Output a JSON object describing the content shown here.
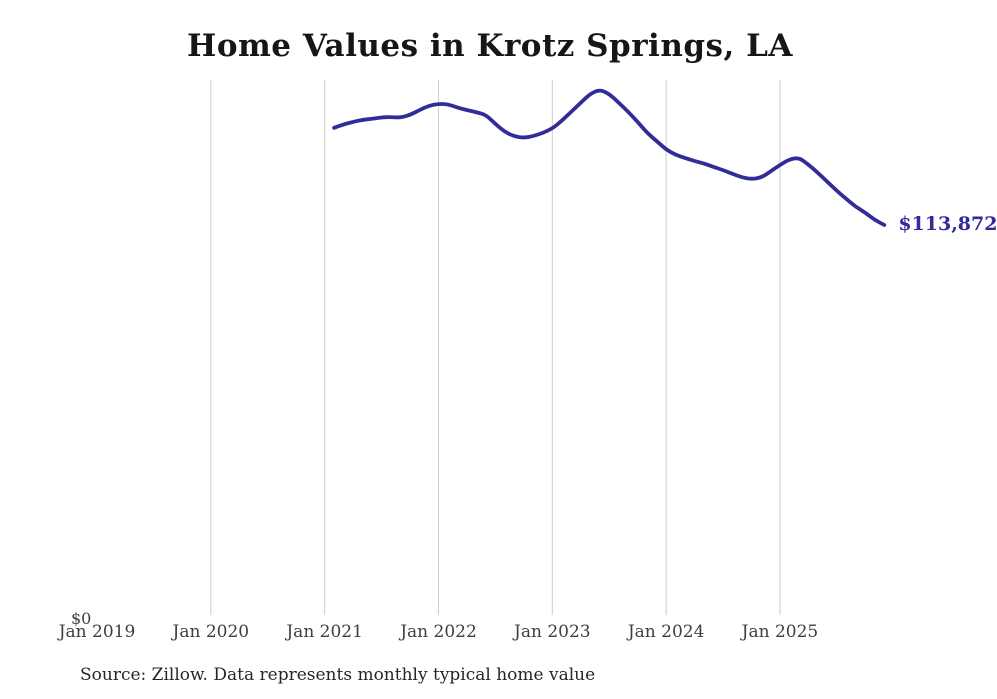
{
  "title": "Home Values in Krotz Springs, LA",
  "source_note": "Source: Zillow. Data represents monthly typical home value",
  "labels": {
    "y_zero": "$0",
    "series_end": "$113,872"
  },
  "colors": {
    "background": "#ffffff",
    "line": "#322d96",
    "grid": "#cdcdcd",
    "title": "#161616",
    "axis_labels": "#3f3f3f",
    "value_label": "#2f2b99",
    "source_text": "#262626"
  },
  "chart_data": {
    "type": "line",
    "title": "Home Values in Krotz Springs, LA",
    "xlabel": "",
    "ylabel": "",
    "ylim": [
      0,
      154000
    ],
    "grid": "vertical-only",
    "legend": "none",
    "y_zero_label": "$0",
    "x_ticks": [
      {
        "label": "Jan 2019",
        "gridline": false
      },
      {
        "label": "Jan 2020",
        "gridline": true
      },
      {
        "label": "Jan 2021",
        "gridline": true
      },
      {
        "label": "Jan 2022",
        "gridline": true
      },
      {
        "label": "Jan 2023",
        "gridline": true
      },
      {
        "label": "Jan 2024",
        "gridline": true
      },
      {
        "label": "Jan 2025",
        "gridline": true
      }
    ],
    "series": [
      {
        "name": "Monthly typical home value",
        "unit": "USD",
        "frequency": "monthly",
        "start": "2021-02",
        "end": "2025-12",
        "last_value": 113872,
        "last_value_label": "$113,872",
        "values": [
          141900,
          142900,
          143600,
          144200,
          144500,
          144900,
          145000,
          144800,
          145600,
          147000,
          148300,
          148800,
          148700,
          147700,
          147000,
          146400,
          145600,
          143000,
          140700,
          139400,
          139000,
          139500,
          140400,
          141700,
          143900,
          146500,
          149100,
          151700,
          152900,
          151700,
          149100,
          146500,
          143600,
          140400,
          138100,
          135600,
          134100,
          133200,
          132300,
          131600,
          130600,
          129700,
          128600,
          127600,
          127100,
          127500,
          129300,
          131200,
          132800,
          133300,
          131300,
          128900,
          126300,
          123700,
          121400,
          119100,
          117400,
          115300,
          113872
        ]
      }
    ]
  }
}
